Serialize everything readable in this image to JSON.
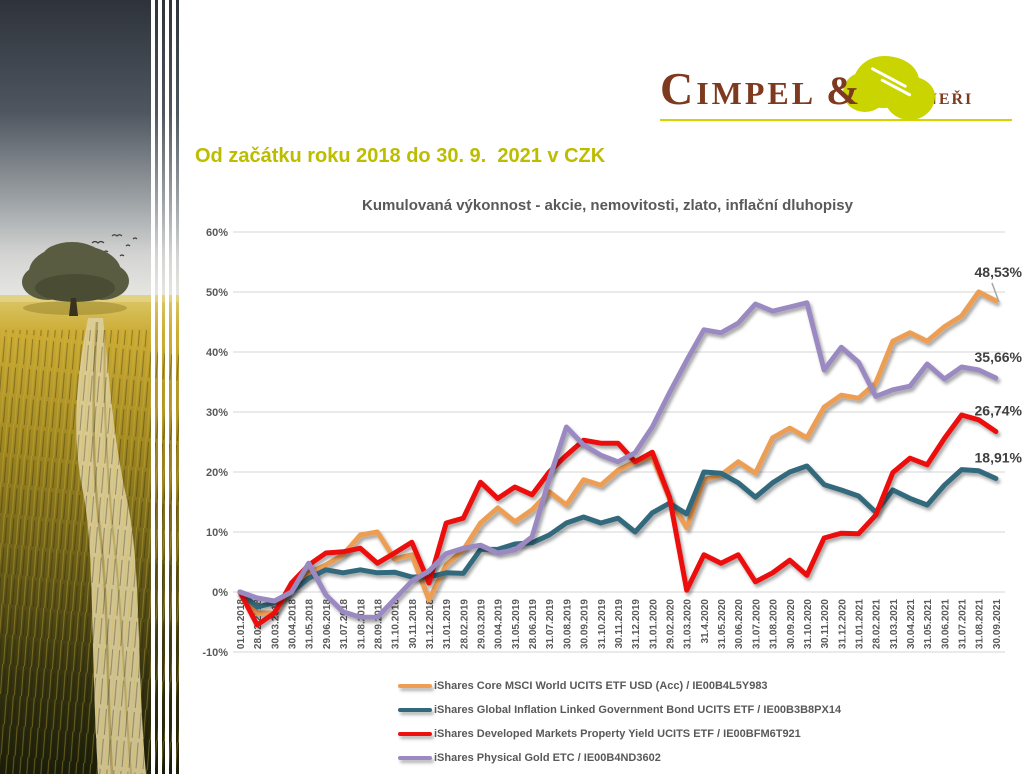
{
  "logo": {
    "word1": "Cimpel",
    "amp": "&",
    "word2": "partneři",
    "brown": "#7E3A1F",
    "green": "#C9D400",
    "underline": "#D6D300"
  },
  "heading": {
    "text": "Od začátku roku 2018 do 30. 9.  2021 v CZK",
    "color": "#BDBD00"
  },
  "chart_data": {
    "type": "line",
    "title": "Kumulovaná výkonnost - akcie, nemovitosti, zlato, inflační dluhopisy",
    "xlabel": "",
    "ylabel": "",
    "ylim": [
      -10,
      60
    ],
    "grid": true,
    "legend_position": "bottom-left",
    "y_ticks": [
      "60%",
      "50%",
      "40%",
      "30%",
      "20%",
      "10%",
      "0%",
      "-10%"
    ],
    "x": [
      "01.01.2018",
      "28.02.2018",
      "30.03.2018",
      "30.04.2018",
      "31.05.2018",
      "29.06.2018",
      "31.07.2018",
      "31.08.2018",
      "28.09.2018",
      "31.10.2018",
      "30.11.2018",
      "31.12.2018",
      "31.01.2019",
      "28.02.2019",
      "29.03.2019",
      "30.04.2019",
      "31.05.2019",
      "28.06.2019",
      "31.07.2019",
      "30.08.2019",
      "30.09.2019",
      "31.10.2019",
      "30.11.2019",
      "31.12.2019",
      "31.01.2020",
      "29.02.2020",
      "31.03.2020",
      "31.4.2020",
      "31.05.2020",
      "30.06.2020",
      "31.07.2020",
      "31.08.2020",
      "30.09.2020",
      "31.10.2020",
      "30.11.2020",
      "31.12.2020",
      "31.01.2021",
      "28.02.2021",
      "31.03.2021",
      "30.04.2021",
      "31.05.2021",
      "30.06.2021",
      "31.07.2021",
      "31.08.2021",
      "30.09.2021"
    ],
    "series": [
      {
        "name": "iShares Core MSCI World UCITS ETF USD (Acc) / IE00B4L5Y983",
        "color": "#ED9E54",
        "end_label": "48,53%",
        "values": [
          0,
          -3.5,
          -3.5,
          0.7,
          3.2,
          4.5,
          6.2,
          9.5,
          10.0,
          5.5,
          6.2,
          -1.3,
          4.5,
          7.0,
          11.5,
          14.0,
          11.7,
          13.7,
          16.7,
          14.5,
          18.7,
          17.8,
          20.3,
          21.7,
          22.5,
          15.6,
          10.7,
          18.7,
          19.5,
          21.7,
          19.8,
          25.7,
          27.3,
          25.7,
          30.8,
          32.8,
          32.3,
          34.8,
          41.8,
          43.2,
          41.8,
          44.2,
          46.0,
          50.0,
          48.53
        ]
      },
      {
        "name": "iShares Global Inflation Linked Government Bond UCITS ETF / IE00B3B8PX14",
        "color": "#31697C",
        "end_label": "18,91%",
        "values": [
          0,
          -2.5,
          -1.8,
          0,
          2.3,
          3.7,
          3.2,
          3.7,
          3.2,
          3.3,
          2.5,
          2.5,
          3.2,
          3.1,
          7.1,
          7.1,
          8.0,
          8.2,
          9.5,
          11.5,
          12.5,
          11.5,
          12.3,
          10.0,
          13.2,
          14.8,
          13.0,
          20.0,
          19.8,
          18.2,
          15.8,
          18.2,
          20.0,
          21.0,
          17.9,
          17.0,
          16.0,
          13.3,
          17.0,
          15.6,
          14.5,
          17.8,
          20.4,
          20.2,
          18.91
        ]
      },
      {
        "name": "iShares Developed Markets Property Yield UCITS ETF / IE00BFM6T921",
        "color": "#EC1111",
        "end_label": "26,74%",
        "values": [
          0,
          -5.5,
          -3.5,
          1.5,
          4.5,
          6.5,
          6.7,
          7.3,
          4.8,
          6.5,
          8.3,
          1.5,
          11.5,
          12.3,
          18.3,
          15.6,
          17.5,
          16.2,
          20.0,
          22.8,
          25.3,
          24.8,
          24.8,
          21.7,
          23.3,
          15.8,
          0.3,
          6.2,
          4.8,
          6.2,
          1.7,
          3.2,
          5.3,
          2.8,
          9.0,
          9.8,
          9.7,
          12.8,
          19.9,
          22.3,
          21.2,
          25.6,
          29.5,
          28.7,
          26.74
        ]
      },
      {
        "name": "iShares Physical Gold ETC / IE00B4ND3602",
        "color": "#9B89C1",
        "end_label": "35,66%",
        "values": [
          0,
          -1.0,
          -1.5,
          0,
          4.8,
          -0.5,
          -3.3,
          -4.2,
          -4.2,
          -1.2,
          1.8,
          3.5,
          6.4,
          7.3,
          7.8,
          6.5,
          7.0,
          9.2,
          18.8,
          27.5,
          24.5,
          22.8,
          21.7,
          23.2,
          27.5,
          33.2,
          38.6,
          43.7,
          43.2,
          44.8,
          48.0,
          46.8,
          47.5,
          48.2,
          37.0,
          40.8,
          38.3,
          32.6,
          33.7,
          34.3,
          38.0,
          35.5,
          37.5,
          37.0,
          35.66
        ]
      }
    ]
  }
}
